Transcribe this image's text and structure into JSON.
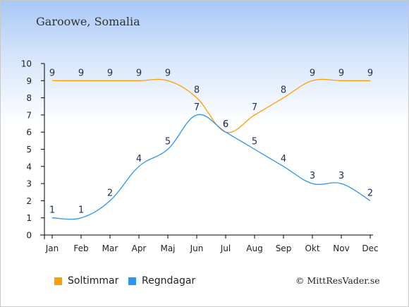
{
  "chart_data": {
    "type": "line",
    "title": "Garoowe, Somalia",
    "categories": [
      "Jan",
      "Feb",
      "Mar",
      "Apr",
      "Maj",
      "Jun",
      "Jul",
      "Aug",
      "Sep",
      "Okt",
      "Nov",
      "Dec"
    ],
    "ylim": [
      0,
      10
    ],
    "yticks": [
      "0",
      "1",
      "2",
      "3",
      "4",
      "5",
      "6",
      "7",
      "8",
      "9",
      "10"
    ],
    "grid": false,
    "legend_position": "bottom",
    "series": [
      {
        "name": "Soltimmar",
        "color": "#ff9e00",
        "values": [
          9,
          9,
          9,
          9,
          9,
          8,
          6,
          7,
          8,
          9,
          9,
          9
        ]
      },
      {
        "name": "Regndagar",
        "color": "#2b95ef",
        "values": [
          1,
          1,
          2,
          4,
          5,
          7,
          6,
          5,
          4,
          3,
          3,
          2
        ]
      }
    ]
  },
  "credit": "© MittResVader.se"
}
